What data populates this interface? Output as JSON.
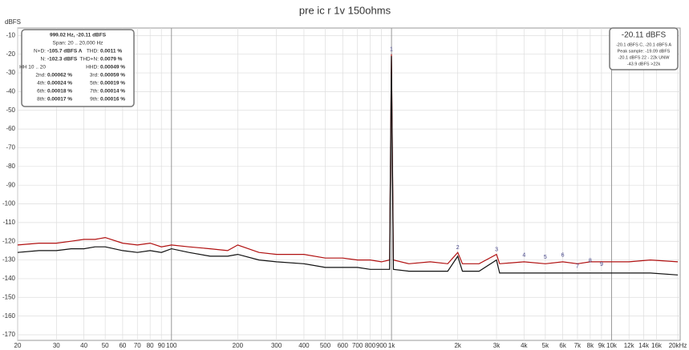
{
  "chart_data": {
    "type": "line",
    "title": "pre ic r 1v 150ohms",
    "y_label": "dBFS",
    "x_scale": "log",
    "grid": true,
    "xlim": [
      20,
      20500
    ],
    "ylim": [
      -173,
      -6
    ],
    "yticks": [
      -10,
      -20,
      -30,
      -40,
      -50,
      -60,
      -70,
      -80,
      -90,
      -100,
      -110,
      -120,
      -130,
      -140,
      -150,
      -160,
      -170
    ],
    "xticks": [
      20,
      30,
      40,
      50,
      60,
      70,
      80,
      90,
      100,
      200,
      300,
      400,
      500,
      600,
      700,
      800,
      900,
      {
        "value": 1000,
        "label": "1k"
      },
      {
        "value": 2000,
        "label": "2k"
      },
      {
        "value": 3000,
        "label": "3k"
      },
      {
        "value": 4000,
        "label": "4k"
      },
      {
        "value": 5000,
        "label": "5k"
      },
      {
        "value": 6000,
        "label": "6k"
      },
      {
        "value": 7000,
        "label": "7k"
      },
      {
        "value": 8000,
        "label": "8k"
      },
      {
        "value": 9000,
        "label": "9k"
      },
      {
        "value": 10000,
        "label": "10k"
      },
      {
        "value": 12000,
        "label": "12k"
      },
      {
        "value": 14000,
        "label": "14k"
      },
      {
        "value": 16000,
        "label": "16k"
      },
      {
        "value": 20000,
        "label": "20kHz"
      }
    ],
    "x": [
      20,
      25,
      30,
      35,
      40,
      45,
      50,
      60,
      70,
      80,
      90,
      100,
      120,
      150,
      180,
      200,
      250,
      300,
      400,
      500,
      600,
      700,
      800,
      900,
      980,
      999,
      1020,
      1200,
      1500,
      1800,
      2000,
      2100,
      2500,
      3000,
      3100,
      4000,
      5000,
      6000,
      7000,
      8000,
      10000,
      12000,
      15000,
      20000
    ],
    "series": [
      {
        "color": "#b01010",
        "values": [
          -122,
          -121,
          -121,
          -120,
          -119,
          -119,
          -118,
          -121,
          -122,
          -121,
          -123,
          -122,
          -123,
          -124,
          -125,
          -122,
          -126,
          -127,
          -127,
          -129,
          -129,
          -130,
          -130,
          -131,
          -130,
          -20,
          -130,
          -132,
          -131,
          -132,
          -126,
          -132,
          -132,
          -127,
          -132,
          -131,
          -132,
          -131,
          -132,
          -131,
          -131,
          -131,
          -130,
          -131
        ]
      },
      {
        "color": "#111111",
        "values": [
          -126,
          -125,
          -125,
          -124,
          -124,
          -123,
          -123,
          -125,
          -126,
          -125,
          -126,
          -124,
          -126,
          -128,
          -128,
          -127,
          -130,
          -131,
          -132,
          -134,
          -134,
          -134,
          -135,
          -135,
          -135,
          -21,
          -135,
          -136,
          -136,
          -136,
          -128,
          -136,
          -136,
          -130,
          -137,
          -137,
          -137,
          -137,
          -137,
          -137,
          -137,
          -137,
          -137,
          -138
        ]
      }
    ],
    "harmonic_markers": [
      {
        "label": "1",
        "x": 999,
        "y": -20
      },
      {
        "label": "2",
        "x": 2000,
        "y": -126
      },
      {
        "label": "3",
        "x": 3000,
        "y": -127
      },
      {
        "label": "4",
        "x": 4000,
        "y": -130
      },
      {
        "label": "5",
        "x": 5000,
        "y": -131
      },
      {
        "label": "6",
        "x": 6000,
        "y": -130
      },
      {
        "label": "7",
        "x": 7000,
        "y": -136
      },
      {
        "label": "8",
        "x": 8000,
        "y": -133
      },
      {
        "label": "9",
        "x": 9000,
        "y": -135
      }
    ],
    "info_box": {
      "header": "999.02 Hz, -20.11 dBFS",
      "span": "Span: 20 .. 20,000 Hz",
      "rows": [
        {
          "l": "N+D:",
          "lv": "-105.7 dBFS A",
          "r": "THD:",
          "rv": "0.0011 %"
        },
        {
          "l": "N:",
          "lv": "-102.3 dBFS",
          "r": "THD+N:",
          "rv": "0.0079 %"
        },
        {
          "l": "HH 10 .. 20",
          "r": "HHD:",
          "rv": "0.00049 %"
        },
        {
          "l": "2nd:",
          "lv": "0.00062 %",
          "r": "3rd:",
          "rv": "0.00059 %"
        },
        {
          "l": "4th:",
          "lv": "0.00024 %",
          "r": "5th:",
          "rv": "0.00019 %"
        },
        {
          "l": "6th:",
          "lv": "0.00018 %",
          "r": "7th:",
          "rv": "0.00014 %"
        },
        {
          "l": "8th:",
          "lv": "0.00017 %",
          "r": "9th:",
          "rv": "0.00016 %"
        }
      ]
    },
    "level_box": {
      "main": "-20.11 dBFS",
      "lines": [
        "-20.1 dBFS C, -20.1 dBFS A",
        "Peak sample: -19.09 dBFS",
        "-20.1 dBFS 22 - 22k UNW",
        "-43.9 dBFS >22k"
      ]
    }
  }
}
